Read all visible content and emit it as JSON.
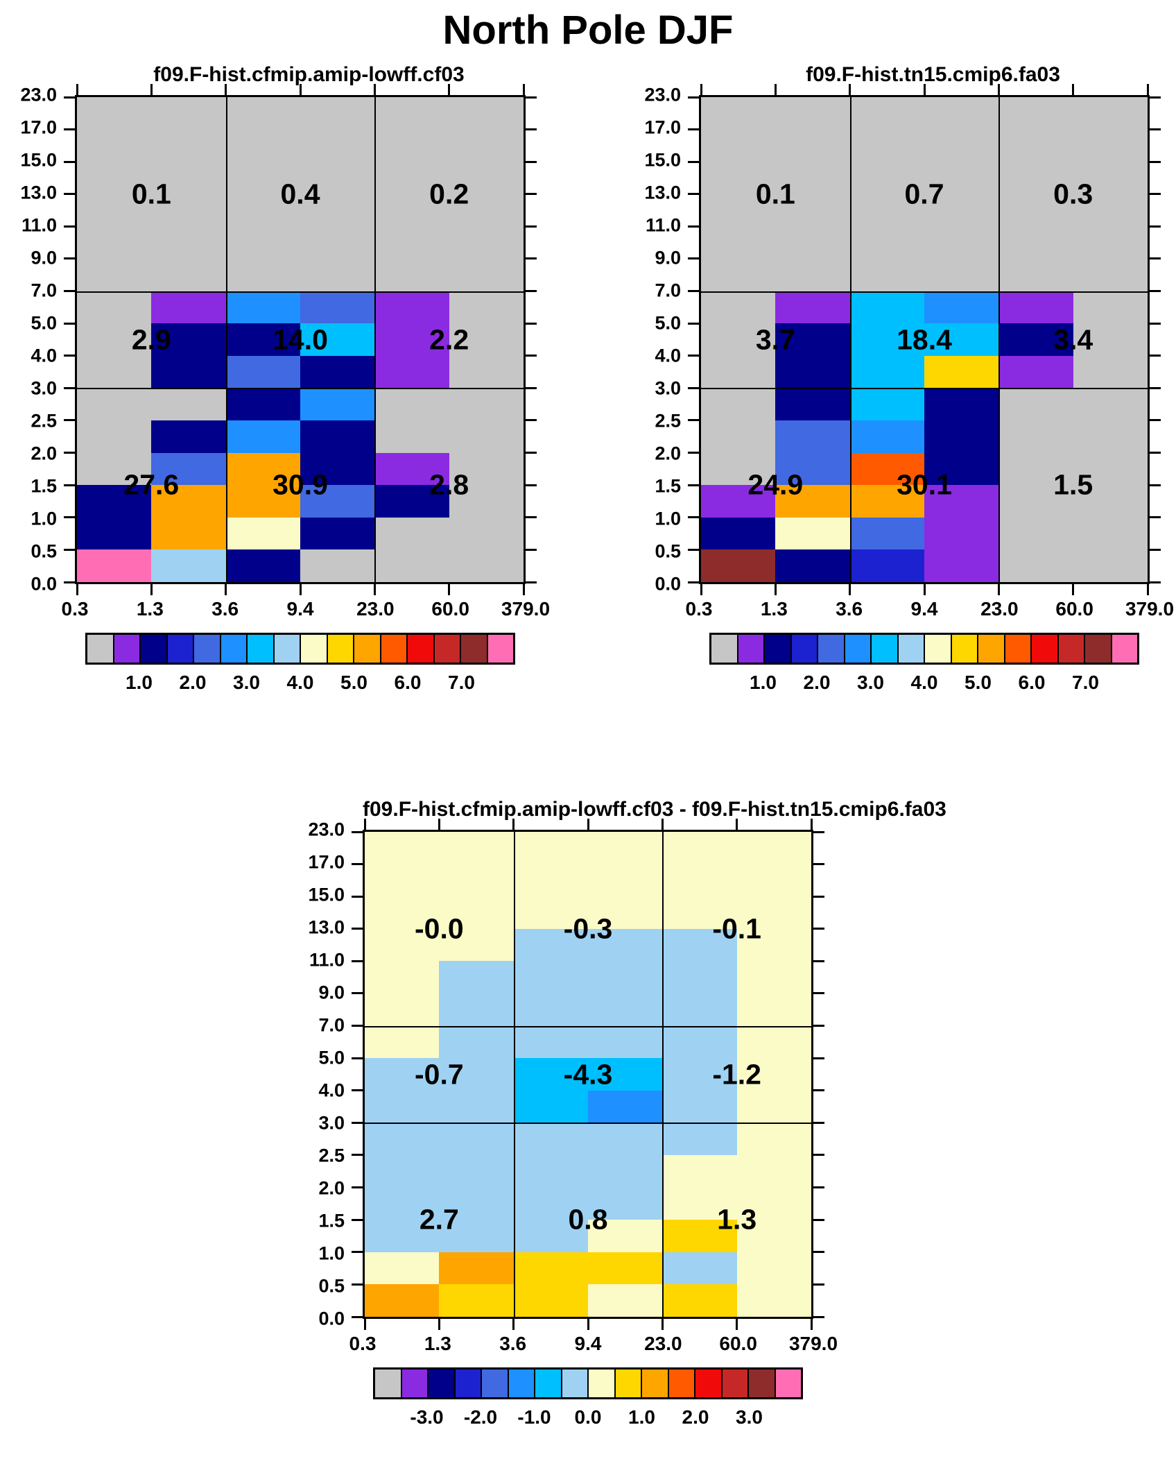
{
  "chart_data": {
    "type": "heatmap",
    "title": "North Pole DJF",
    "axes": {
      "x_ticks": [
        "0.3",
        "1.3",
        "3.6",
        "9.4",
        "23.0",
        "60.0",
        "379.0"
      ],
      "y_ticks_top_to_bottom": [
        "23.0",
        "17.0",
        "15.0",
        "13.0",
        "11.0",
        "9.0",
        "7.0",
        "5.0",
        "4.0",
        "3.0",
        "2.5",
        "2.0",
        "1.5",
        "1.0",
        "0.5",
        "0.0"
      ],
      "x_bin_edges": [
        0.3,
        1.3,
        3.6,
        9.4,
        23.0,
        60.0,
        379.0
      ],
      "y_bin_edges": [
        0.0,
        0.5,
        1.0,
        1.5,
        2.0,
        2.5,
        3.0,
        4.0,
        5.0,
        7.0,
        9.0,
        11.0,
        13.0,
        15.0,
        17.0,
        23.0
      ],
      "region_x_boundaries": [
        3.6,
        23.0
      ],
      "region_y_boundaries": [
        3.0,
        7.0
      ]
    },
    "palette": {
      "G": "#c6c6c6",
      "P": "#8a2be2",
      "N": "#00008b",
      "B": "#1c22cf",
      "R": "#4169e1",
      "D": "#1e90ff",
      "C": "#00bfff",
      "L": "#9fd2f2",
      "Y": "#fbfbc8",
      "g": "#ffd700",
      "O": "#ffa500",
      "o": "#ff5a00",
      "r": "#f00a0a",
      "f": "#c62828",
      "w": "#8e2c2c",
      "p": "#ff6eb4"
    },
    "colorbar_order": [
      "G",
      "P",
      "N",
      "B",
      "R",
      "D",
      "C",
      "L",
      "Y",
      "g",
      "O",
      "o",
      "r",
      "f",
      "w",
      "p"
    ],
    "panels": [
      {
        "title": "f09.F-hist.cfmip.amip-lowff.cf03",
        "region_values": [
          [
            "0.1",
            "0.4",
            "0.2"
          ],
          [
            "2.9",
            "14.0",
            "2.2"
          ],
          [
            "27.6",
            "30.9",
            "2.8"
          ]
        ],
        "grid_rows_top_to_bottom": [
          "GGGGGG",
          "GGGGGG",
          "GGGGGG",
          "GGGGGG",
          "GGGGGG",
          "GGGGGG",
          "GPDRPG",
          "GNNCPG",
          "GNRNPG",
          "GGNDGG",
          "GNDNGG",
          "GRONPG",
          "NOORNG",
          "NOYNGG",
          "pLNGGG"
        ],
        "colorbar_labels": [
          "1.0",
          "2.0",
          "3.0",
          "4.0",
          "5.0",
          "6.0",
          "7.0"
        ]
      },
      {
        "title": "f09.F-hist.tn15.cmip6.fa03",
        "region_values": [
          [
            "0.1",
            "0.7",
            "0.3"
          ],
          [
            "3.7",
            "18.4",
            "3.4"
          ],
          [
            "24.9",
            "30.1",
            "1.5"
          ]
        ],
        "grid_rows_top_to_bottom": [
          "GGGGGG",
          "GGGGGG",
          "GGGGGG",
          "GGGGGG",
          "GGGGGG",
          "GGGGGG",
          "GPCDPG",
          "GNCCNG",
          "GNCgPG",
          "GNCNGG",
          "GRDNGG",
          "GRoNGG",
          "POOPGG",
          "NYRPGG",
          "wNBPGG"
        ],
        "colorbar_labels": [
          "1.0",
          "2.0",
          "3.0",
          "4.0",
          "5.0",
          "6.0",
          "7.0"
        ]
      },
      {
        "title": "f09.F-hist.cfmip.amip-lowff.cf03 - f09.F-hist.tn15.cmip6.fa03",
        "region_values": [
          [
            "-0.0",
            "-0.3",
            "-0.1"
          ],
          [
            "-0.7",
            "-4.3",
            "-1.2"
          ],
          [
            "2.7",
            "0.8",
            "1.3"
          ]
        ],
        "grid_rows_top_to_bottom": [
          "YYYYYY",
          "YYYYYY",
          "YYYYYY",
          "YYLLLY",
          "YLLLLY",
          "YLLLLY",
          "YLLLLY",
          "LLCCLY",
          "LLCDLY",
          "LLLLLY",
          "LLLLYY",
          "LLLLYY",
          "LLLYgY",
          "YOggLY",
          "OggYgY"
        ],
        "colorbar_labels": [
          "-3.0",
          "-2.0",
          "-1.0",
          "0.0",
          "1.0",
          "2.0",
          "3.0"
        ]
      }
    ]
  }
}
